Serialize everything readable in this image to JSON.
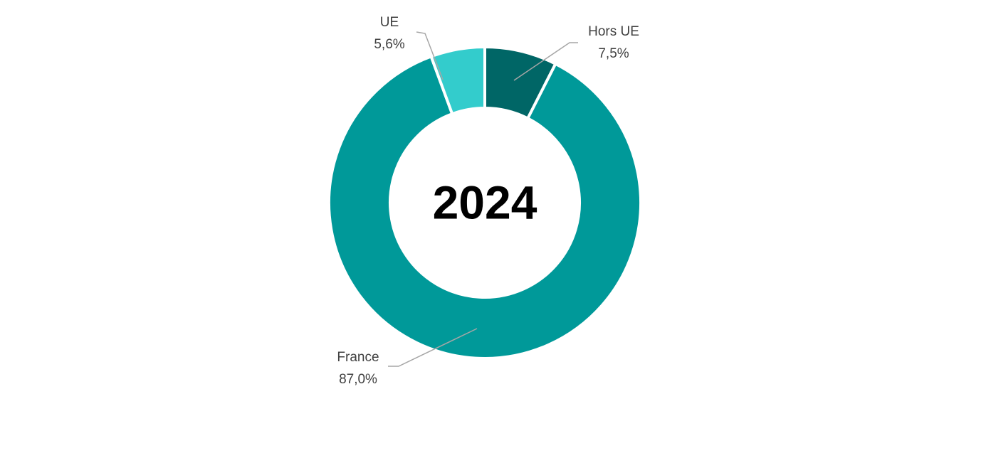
{
  "chart_data": {
    "type": "donut",
    "center_text": "2024",
    "categories": [
      "Hors UE",
      "France",
      "UE"
    ],
    "values": [
      7.5,
      87.0,
      5.6
    ],
    "value_labels": [
      "7,5%",
      "87,0%",
      "5,6%"
    ],
    "colors": [
      "#006666",
      "#009999",
      "#33cccc"
    ]
  }
}
